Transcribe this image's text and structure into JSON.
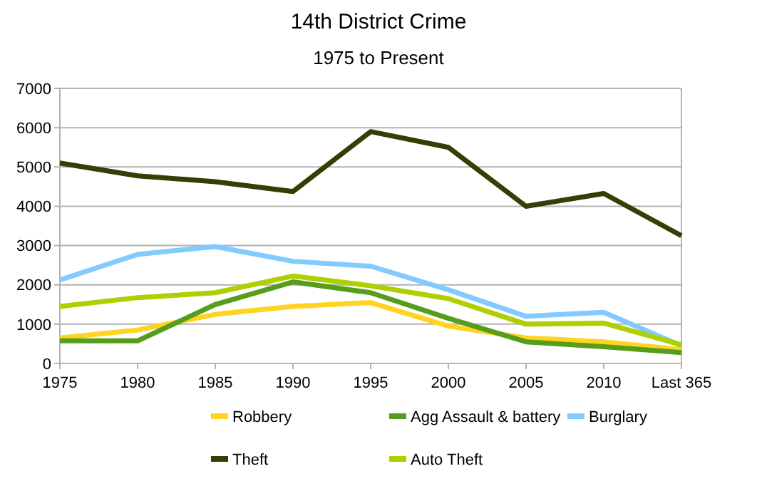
{
  "chart_data": {
    "type": "line",
    "title": "14th District Crime",
    "subtitle": "1975 to Present",
    "categories": [
      "1975",
      "1980",
      "1985",
      "1990",
      "1995",
      "2000",
      "2005",
      "2010",
      "Last 365"
    ],
    "series": [
      {
        "name": "Robbery",
        "color": "#ffd320",
        "values": [
          650,
          850,
          1250,
          1450,
          1550,
          950,
          650,
          550,
          350
        ]
      },
      {
        "name": "Agg Assault & battery",
        "color": "#579d1c",
        "values": [
          575,
          575,
          1500,
          2075,
          1800,
          1150,
          550,
          425,
          275
        ]
      },
      {
        "name": "Burglary",
        "color": "#83caff",
        "values": [
          2125,
          2775,
          2975,
          2600,
          2475,
          1875,
          1200,
          1300,
          450
        ]
      },
      {
        "name": "Theft",
        "color": "#314004",
        "values": [
          5100,
          4775,
          4625,
          4375,
          5900,
          5500,
          4000,
          4325,
          3250
        ]
      },
      {
        "name": "Auto Theft",
        "color": "#aecf00",
        "values": [
          1450,
          1675,
          1800,
          2225,
          1975,
          1650,
          1000,
          1025,
          475
        ]
      }
    ],
    "ylim": [
      0,
      7000
    ],
    "yticks": [
      0,
      1000,
      2000,
      3000,
      4000,
      5000,
      6000,
      7000
    ],
    "grid": "y",
    "legend": "bottom",
    "marker": "none",
    "line_style": "solid"
  }
}
